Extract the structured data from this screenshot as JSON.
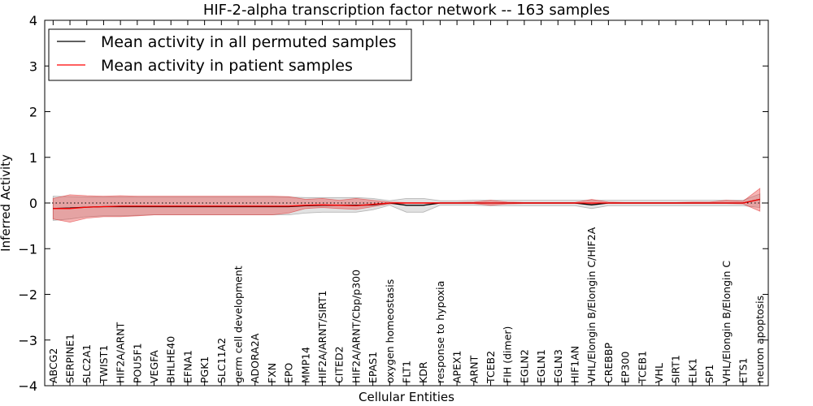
{
  "chart_data": {
    "type": "line",
    "title": "HIF-2-alpha transcription factor network -- 163 samples",
    "xlabel": "Cellular Entities",
    "ylabel": "Inferred Activity",
    "ylim": [
      -4,
      4
    ],
    "yticks": [
      -4,
      -3,
      -2,
      -1,
      0,
      1,
      2,
      3,
      4
    ],
    "ytick_labels": [
      "−4",
      "−3",
      "−2",
      "−1",
      "0",
      "1",
      "2",
      "3",
      "4"
    ],
    "zero_reference_line": "dotted",
    "legend": {
      "placement": "top-left"
    },
    "categories": [
      "ABCG2",
      "SERPINE1",
      "SLC2A1",
      "TWIST1",
      "HIF2A/ARNT",
      "POU5F1",
      "VEGFA",
      "BHLHE40",
      "EFNA1",
      "PGK1",
      "SLC11A2",
      "germ cell development",
      "ADORA2A",
      "FXN",
      "EPO",
      "MMP14",
      "HIF2A/ARNT/SIRT1",
      "CITED2",
      "HIF2A/ARNT/Cbp/p300",
      "EPAS1",
      "oxygen homeostasis",
      "FLT1",
      "KDR",
      "response to hypoxia",
      "APEX1",
      "ARNT",
      "TCEB2",
      "FIH (dimer)",
      "EGLN2",
      "EGLN1",
      "EGLN3",
      "HIF1AN",
      "VHL/Elongin B/Elongin C/HIF2A",
      "CREBBP",
      "EP300",
      "TCEB1",
      "VHL",
      "SIRT1",
      "ELK1",
      "SP1",
      "VHL/Elongin B/Elongin C",
      "ETS1",
      "neuron apoptosis"
    ],
    "series": [
      {
        "name": "Mean activity in all permuted samples",
        "color": "#000000",
        "values": [
          -0.12,
          -0.11,
          -0.09,
          -0.08,
          -0.08,
          -0.08,
          -0.08,
          -0.08,
          -0.08,
          -0.08,
          -0.08,
          -0.08,
          -0.08,
          -0.08,
          -0.08,
          -0.06,
          -0.05,
          -0.05,
          -0.05,
          -0.04,
          0.0,
          -0.05,
          -0.05,
          0.0,
          0.0,
          0.0,
          0.0,
          0.0,
          0.0,
          0.0,
          0.0,
          0.0,
          -0.04,
          0.0,
          0.0,
          0.0,
          0.0,
          0.0,
          0.0,
          0.0,
          0.0,
          0.0,
          0.08
        ],
        "band_low": [
          -0.38,
          -0.35,
          -0.3,
          -0.28,
          -0.28,
          -0.27,
          -0.26,
          -0.26,
          -0.26,
          -0.26,
          -0.26,
          -0.26,
          -0.26,
          -0.26,
          -0.26,
          -0.22,
          -0.2,
          -0.2,
          -0.2,
          -0.15,
          -0.05,
          -0.2,
          -0.2,
          -0.05,
          -0.05,
          -0.05,
          -0.06,
          -0.06,
          -0.06,
          -0.06,
          -0.06,
          -0.06,
          -0.12,
          -0.06,
          -0.06,
          -0.06,
          -0.06,
          -0.06,
          -0.06,
          -0.06,
          -0.06,
          -0.06,
          -0.1
        ],
        "band_high": [
          0.15,
          0.14,
          0.13,
          0.13,
          0.13,
          0.13,
          0.13,
          0.13,
          0.13,
          0.13,
          0.13,
          0.13,
          0.13,
          0.13,
          0.13,
          0.12,
          0.12,
          0.12,
          0.12,
          0.1,
          0.05,
          0.1,
          0.1,
          0.05,
          0.05,
          0.06,
          0.06,
          0.06,
          0.06,
          0.06,
          0.06,
          0.06,
          0.06,
          0.06,
          0.06,
          0.06,
          0.06,
          0.06,
          0.06,
          0.06,
          0.06,
          0.06,
          0.2
        ]
      },
      {
        "name": "Mean activity in patient samples",
        "color": "#ff0000",
        "values": [
          -0.12,
          -0.12,
          -0.09,
          -0.08,
          -0.07,
          -0.07,
          -0.07,
          -0.07,
          -0.07,
          -0.07,
          -0.07,
          -0.07,
          -0.07,
          -0.07,
          -0.07,
          -0.05,
          -0.04,
          -0.05,
          -0.06,
          -0.03,
          0.0,
          0.0,
          0.0,
          0.0,
          0.0,
          0.0,
          0.0,
          0.0,
          0.0,
          0.0,
          0.0,
          0.0,
          0.0,
          0.0,
          0.0,
          0.0,
          0.0,
          0.0,
          0.0,
          0.0,
          0.0,
          0.0,
          0.08
        ],
        "band_low": [
          -0.35,
          -0.42,
          -0.33,
          -0.3,
          -0.3,
          -0.28,
          -0.26,
          -0.26,
          -0.26,
          -0.26,
          -0.26,
          -0.26,
          -0.26,
          -0.26,
          -0.22,
          -0.12,
          -0.1,
          -0.12,
          -0.14,
          -0.08,
          -0.02,
          -0.01,
          -0.01,
          -0.01,
          -0.01,
          -0.01,
          -0.05,
          -0.02,
          -0.01,
          -0.01,
          -0.01,
          -0.01,
          -0.02,
          -0.01,
          -0.01,
          -0.01,
          -0.01,
          -0.01,
          -0.01,
          -0.01,
          -0.01,
          -0.02,
          -0.18
        ],
        "band_high": [
          0.1,
          0.18,
          0.16,
          0.15,
          0.16,
          0.15,
          0.15,
          0.15,
          0.15,
          0.15,
          0.15,
          0.15,
          0.15,
          0.15,
          0.14,
          0.08,
          0.1,
          0.06,
          0.1,
          0.06,
          0.02,
          0.01,
          0.01,
          0.01,
          0.01,
          0.02,
          0.06,
          0.02,
          0.01,
          0.01,
          0.01,
          0.01,
          0.08,
          0.02,
          0.01,
          0.01,
          0.01,
          0.01,
          0.02,
          0.02,
          0.06,
          0.04,
          0.32
        ]
      }
    ]
  }
}
